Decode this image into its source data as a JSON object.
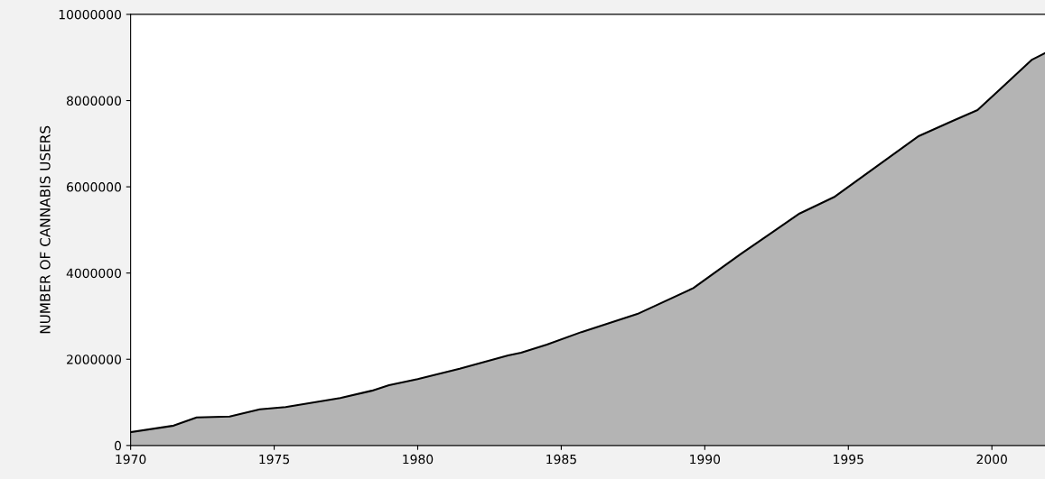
{
  "chart_data": {
    "type": "area",
    "ylabel": "NUMBER OF CANNABIS USERS",
    "x": [
      1970,
      1971.5,
      1972.3,
      1973.45,
      1974.5,
      1975.4,
      1977.3,
      1978.4,
      1979.0,
      1980,
      1981.46,
      1983.15,
      1983.6,
      1984.5,
      1985.7,
      1987.65,
      1989.6,
      1991.25,
      1993.3,
      1994.5,
      1995.5,
      1997.46,
      1998.6,
      1999.5,
      2000.3,
      2001.4,
      2001.85
    ],
    "series": [
      {
        "color": "#b4b4b4",
        "values": [
          310000,
          460000,
          650000,
          670000,
          840000,
          890000,
          1100000,
          1270000,
          1400000,
          1540000,
          1780000,
          2090000,
          2150000,
          2340000,
          2630000,
          3050000,
          3650000,
          4440000,
          5380000,
          5760000,
          6240000,
          7180000,
          7520000,
          7780000,
          8270000,
          8950000,
          9100000
        ]
      }
    ],
    "xlim": [
      1970,
      2001.85
    ],
    "xticks": [
      1970,
      1975,
      1980,
      1985,
      1990,
      1995,
      2000
    ],
    "ylim": [
      0,
      10000000
    ],
    "yticks": [
      0,
      2000000,
      4000000,
      6000000,
      8000000,
      10000000
    ],
    "grid": false
  }
}
